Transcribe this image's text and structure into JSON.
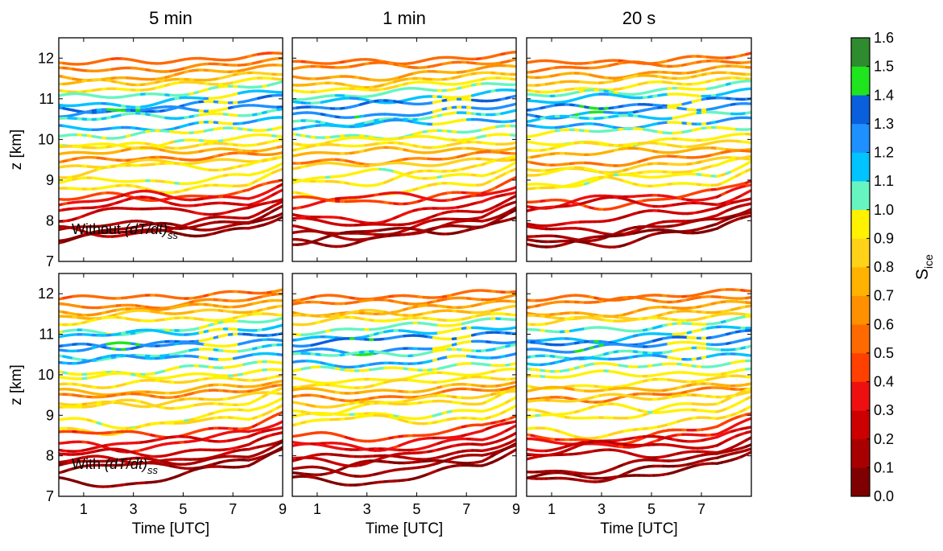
{
  "chart_data": {
    "type": "line",
    "layout": "2x3 grid of trajectory panels with shared colorbar",
    "column_titles": [
      "5 min",
      "1 min",
      "20 s"
    ],
    "row_annotations": [
      {
        "prefix": "Without ",
        "term": "(dT/dt)",
        "subscript": "ss"
      },
      {
        "prefix": "With ",
        "term": "(dT/dt)",
        "subscript": "ss"
      }
    ],
    "xlabel": "Time [UTC]",
    "ylabel": "z [km]",
    "xlim": [
      0,
      9
    ],
    "ylim": [
      7,
      12.5
    ],
    "x_tick_values": [
      1,
      3,
      5,
      7,
      9
    ],
    "x_tick_labels_full": [
      "1",
      "3",
      "5",
      "7",
      "9"
    ],
    "x_tick_labels_last": [
      "1",
      "3",
      "5",
      "7",
      ""
    ],
    "y_tick_values": [
      7,
      8,
      9,
      10,
      11,
      12
    ],
    "y_tick_labels": [
      "7",
      "8",
      "9",
      "10",
      "11",
      "12"
    ],
    "colorbar": {
      "label_main": "S",
      "label_sub": "ice",
      "range": [
        0.0,
        1.6
      ],
      "tick_labels": [
        "0.0",
        "0.1",
        "0.2",
        "0.3",
        "0.4",
        "0.5",
        "0.6",
        "0.7",
        "0.8",
        "0.9",
        "1.0",
        "1.1",
        "1.2",
        "1.3",
        "1.4",
        "1.5",
        "1.6"
      ],
      "colors": [
        "#7f0000",
        "#a80000",
        "#cc0000",
        "#ee1010",
        "#ff4000",
        "#ff6a00",
        "#ff9000",
        "#ffb300",
        "#ffd21a",
        "#fff200",
        "#66f5c0",
        "#00c3ff",
        "#1e90ff",
        "#0a5fdc",
        "#1fe51f",
        "#2e8b2e"
      ]
    },
    "series_description": "air parcel trajectories coloured by S_ice; top rows near 12 km dry (orange), 10-11.5 km supersaturated (blue/cyan), 9-10 km yellow, below 9 km red",
    "series": [
      {
        "z_start": 11.85,
        "z_end": 12.1,
        "s_ice": 0.55
      },
      {
        "z_start": 11.7,
        "z_end": 11.95,
        "s_ice": 0.6
      },
      {
        "z_start": 11.55,
        "z_end": 11.8,
        "s_ice": 0.7
      },
      {
        "z_start": 11.4,
        "z_end": 11.65,
        "s_ice": 0.8
      },
      {
        "z_start": 11.25,
        "z_end": 11.5,
        "s_ice": 0.9
      },
      {
        "z_start": 11.05,
        "z_end": 11.4,
        "s_ice": 1.05
      },
      {
        "z_start": 10.9,
        "z_end": 11.2,
        "s_ice": 1.15
      },
      {
        "z_start": 10.75,
        "z_end": 11.05,
        "s_ice": 1.3
      },
      {
        "z_start": 10.6,
        "z_end": 10.85,
        "s_ice": 1.25
      },
      {
        "z_start": 10.45,
        "z_end": 10.7,
        "s_ice": 1.1
      },
      {
        "z_start": 10.3,
        "z_end": 10.5,
        "s_ice": 1.2
      },
      {
        "z_start": 10.1,
        "z_end": 10.3,
        "s_ice": 1.0
      },
      {
        "z_start": 9.9,
        "z_end": 10.1,
        "s_ice": 0.95
      },
      {
        "z_start": 9.75,
        "z_end": 9.95,
        "s_ice": 0.9
      },
      {
        "z_start": 9.6,
        "z_end": 9.8,
        "s_ice": 0.75
      },
      {
        "z_start": 9.45,
        "z_end": 9.7,
        "s_ice": 0.6
      },
      {
        "z_start": 9.3,
        "z_end": 9.55,
        "s_ice": 0.85
      },
      {
        "z_start": 9.1,
        "z_end": 9.4,
        "s_ice": 0.9
      },
      {
        "z_start": 8.9,
        "z_end": 9.2,
        "s_ice": 0.95
      },
      {
        "z_start": 8.7,
        "z_end": 9.0,
        "s_ice": 0.9
      },
      {
        "z_start": 8.5,
        "z_end": 8.8,
        "s_ice": 0.45
      },
      {
        "z_start": 8.35,
        "z_end": 8.65,
        "s_ice": 0.35
      },
      {
        "z_start": 8.2,
        "z_end": 8.5,
        "s_ice": 0.3
      },
      {
        "z_start": 8.0,
        "z_end": 8.35,
        "s_ice": 0.25
      },
      {
        "z_start": 7.85,
        "z_end": 8.2,
        "s_ice": 0.2
      },
      {
        "z_start": 7.7,
        "z_end": 8.1,
        "s_ice": 0.15
      },
      {
        "z_start": 7.55,
        "z_end": 8.0,
        "s_ice": 0.12
      },
      {
        "z_start": 7.45,
        "z_end": 7.9,
        "s_ice": 0.08
      }
    ]
  }
}
